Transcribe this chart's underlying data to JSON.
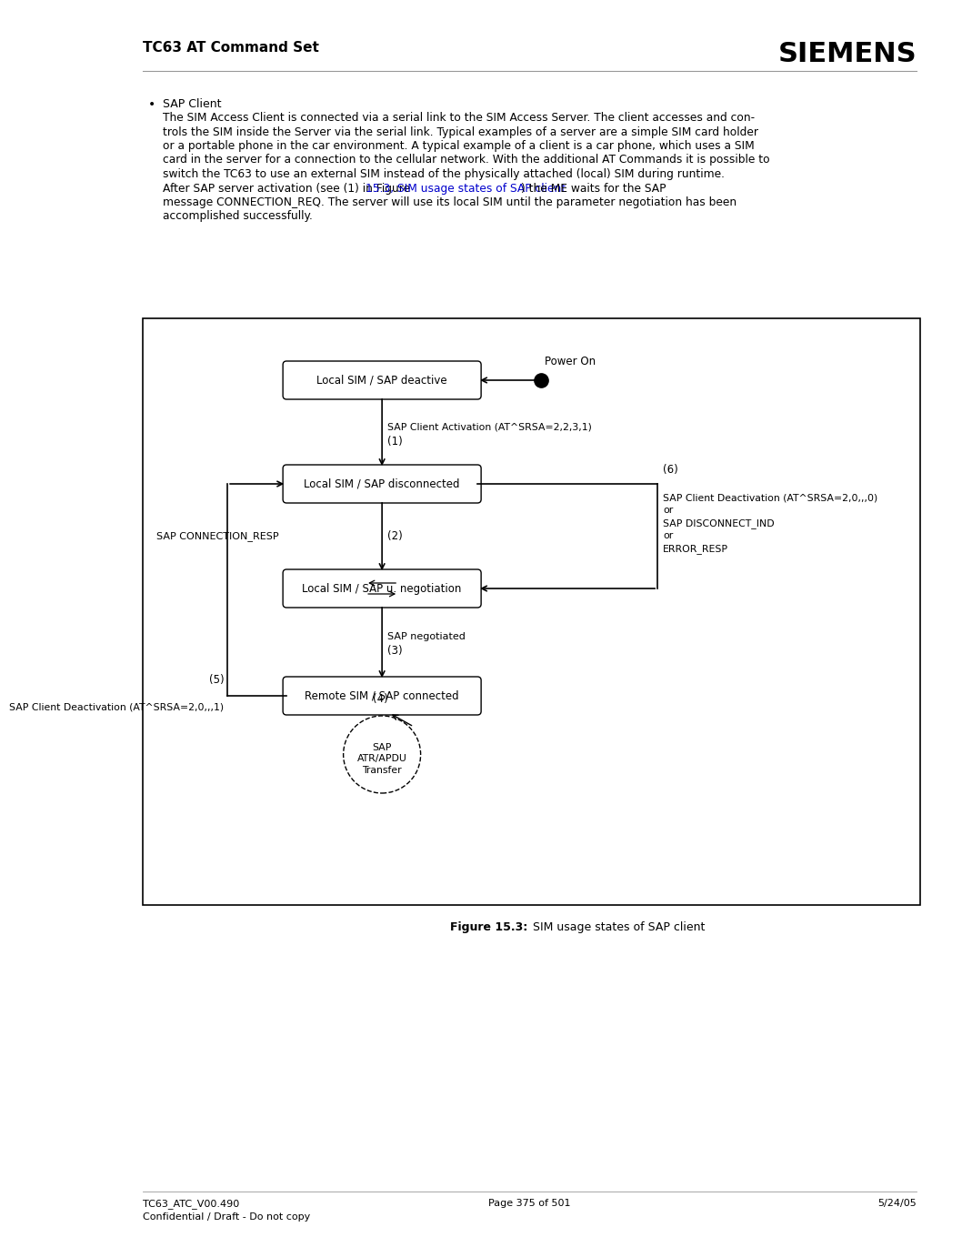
{
  "page_title": "TC63 AT Command Set",
  "siemens_logo": "SIEMENS",
  "footer_left1": "TC63_ATC_V00.490",
  "footer_left2": "Confidential / Draft - Do not copy",
  "footer_center": "Page 375 of 501",
  "footer_right": "5/24/05",
  "bullet_title": "SAP Client",
  "body_lines1": [
    "The SIM Access Client is connected via a serial link to the SIM Access Server. The client accesses and con-",
    "trols the SIM inside the Server via the serial link. Typical examples of a server are a simple SIM card holder",
    "or a portable phone in the car environment. A typical example of a client is a car phone, which uses a SIM",
    "card in the server for a connection to the cellular network. With the additional AT Commands it is possible to",
    "switch the TC63 to use an external SIM instead of the physically attached (local) SIM during runtime."
  ],
  "body_line_link_pre": "After SAP server activation (see (1) in Figure ",
  "body_line_link": "15.3, SIM usage states of SAP client",
  "body_line_link_post": ") the ME waits for the SAP",
  "body_lines2": [
    "message CONNECTION_REQ. The server will use its local SIM until the parameter negotiation has been",
    "accomplished successfully."
  ],
  "link_color": "#0000CC",
  "figure_caption_bold": "Figure 15.3:",
  "figure_caption_normal": " SIM usage states of SAP client",
  "bg_color": "#FFFFFF",
  "text_color": "#000000",
  "state1_label": "Local SIM / SAP deactive",
  "state2_label": "Local SIM / SAP disconnected",
  "state3_label": "Local SIM / SAP u. negotiation",
  "state4_label": "Remote SIM / SAP connected",
  "power_on": "Power On",
  "trans12_right1": "SAP Client Activation (AT^SRSA=2,2,3,1)",
  "trans12_right2": "(1)",
  "trans23_left": "SAP CONNECTION_RESP",
  "trans23_right": "(2)",
  "trans34_right1": "SAP negotiated",
  "trans34_right2": "(3)",
  "trans42_left1": "SAP Client Deactivation (AT^SRSA=2,0,,,1)",
  "trans42_left2": "(5)",
  "trans_right6_1": "(6)",
  "trans_right6_2a": "SAP Client Deactivation (AT^SRSA=2,0,,,0)",
  "trans_right6_2b": "or",
  "trans_right6_2c": "SAP DISCONNECT_IND",
  "trans_right6_2d": "or",
  "trans_right6_2e": "ERROR_RESP",
  "loop_label1": "(4)",
  "loop_label2": "SAP\nATR/APDU\nTransfer"
}
